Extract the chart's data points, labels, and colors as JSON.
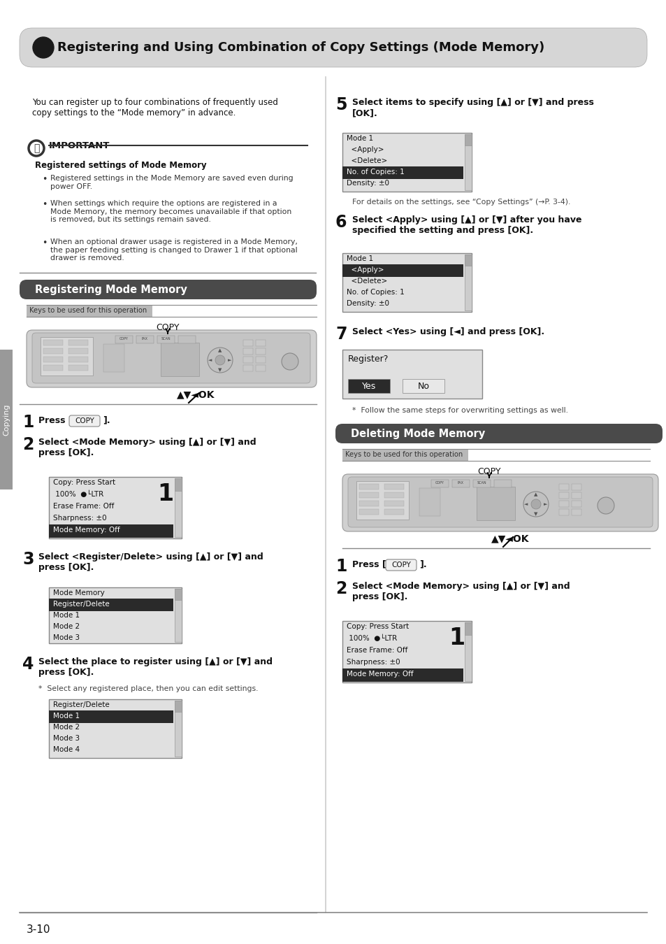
{
  "title": "Registering and Using Combination of Copy Settings (Mode Memory)",
  "bg_color": "#ffffff",
  "section1_title": "Registering Mode Memory",
  "section2_title": "Deleting Mode Memory",
  "keys_label_text": "Keys to be used for this operation",
  "intro_text": "You can register up to four combinations of frequently used\ncopy settings to the “Mode memory” in advance.",
  "important_title": "IMPORTANT",
  "important_subtitle": "Registered settings of Mode Memory",
  "important_bullets": [
    "Registered settings in the Mode Memory are saved even during\npower OFF.",
    "When settings which require the options are registered in a\nMode Memory, the memory becomes unavailable if that option\nis removed, but its settings remain saved.",
    "When an optional drawer usage is registered in a Mode Memory,\nthe paper feeding setting is changed to Drawer 1 if that optional\ndrawer is removed."
  ],
  "step1_text": "Press [  COPY  ].",
  "step2_text": "Select <Mode Memory> using [▲] or [▼] and\npress [OK].",
  "step3_text": "Select <Register/Delete> using [▲] or [▼] and\npress [OK].",
  "step4_text": "Select the place to register using [▲] or [▼] and\npress [OK].",
  "step4_note": "*  Select any registered place, then you can edit settings.",
  "step5_text": "Select items to specify using [▲] or [▼] and press\n[OK].",
  "step5_note": "For details on the settings, see “Copy Settings” (→P. 3-4).",
  "step6_text": "Select <Apply> using [▲] or [▼] after you have\nspecified the setting and press [OK].",
  "step7_text": "Select <Yes> using [◄] and press [OK].",
  "step7_note": "*  Follow the same steps for overwriting settings as well.",
  "del_step1_text": "Press [  COPY  ].",
  "del_step2_text": "Select <Mode Memory> using [▲] or [▼] and\npress [OK].",
  "page_label": "3-10",
  "sidebar_text": "Copying",
  "nav_label": "▲▼◄OK"
}
